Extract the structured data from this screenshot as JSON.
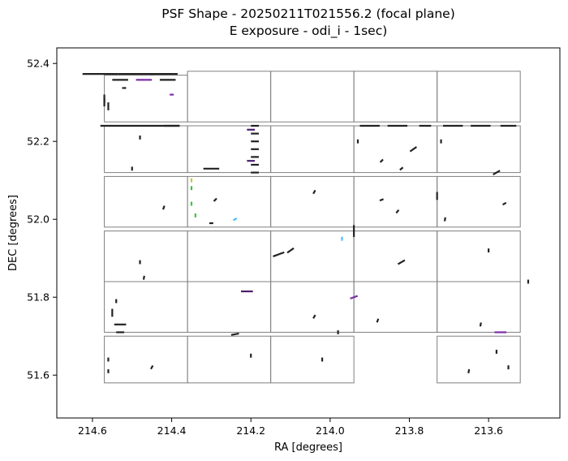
{
  "chart_data": {
    "type": "scatter",
    "title_line_1": "PSF Shape - 20250211T021556.2 (focal plane)",
    "title_line_2": "E exposure - odi_i - 1sec)",
    "xlabel": "RA [degrees]",
    "ylabel": "DEC [degrees]",
    "x_inverted": true,
    "xlim": [
      214.69,
      213.42
    ],
    "ylim": [
      51.49,
      52.44
    ],
    "xticks": [
      214.6,
      214.4,
      214.2,
      214.0,
      213.8,
      213.6
    ],
    "xtick_labels": [
      "214.6",
      "214.4",
      "214.2",
      "214.0",
      "213.8",
      "213.6"
    ],
    "yticks": [
      51.6,
      51.8,
      52.0,
      52.2,
      52.4
    ],
    "ytick_labels": [
      "51.6",
      "51.8",
      "52.0",
      "52.2",
      "52.4"
    ],
    "grid": false,
    "frame_color": "#808080",
    "default_stick_color": "#222222",
    "ota_frames": [
      [
        214.57,
        214.36,
        52.37,
        52.25
      ],
      [
        214.36,
        214.15,
        52.38,
        52.25
      ],
      [
        214.15,
        213.94,
        52.38,
        52.25
      ],
      [
        213.94,
        213.73,
        52.38,
        52.25
      ],
      [
        213.73,
        213.52,
        52.38,
        52.25
      ],
      [
        214.57,
        214.36,
        52.24,
        52.12
      ],
      [
        214.36,
        214.15,
        52.24,
        52.12
      ],
      [
        214.15,
        213.94,
        52.24,
        52.12
      ],
      [
        213.94,
        213.73,
        52.24,
        52.12
      ],
      [
        213.73,
        213.52,
        52.24,
        52.12
      ],
      [
        214.57,
        214.36,
        52.11,
        51.98
      ],
      [
        214.36,
        214.15,
        52.11,
        51.98
      ],
      [
        214.15,
        213.94,
        52.11,
        51.98
      ],
      [
        213.94,
        213.73,
        52.11,
        51.98
      ],
      [
        213.73,
        213.52,
        52.11,
        51.98
      ],
      [
        214.57,
        214.36,
        51.97,
        51.84
      ],
      [
        214.36,
        214.15,
        51.97,
        51.84
      ],
      [
        214.15,
        213.94,
        51.97,
        51.84
      ],
      [
        213.94,
        213.73,
        51.97,
        51.84
      ],
      [
        213.73,
        213.52,
        51.97,
        51.84
      ],
      [
        214.57,
        214.36,
        51.84,
        51.71
      ],
      [
        214.36,
        214.15,
        51.84,
        51.71
      ],
      [
        214.15,
        213.94,
        51.84,
        51.71
      ],
      [
        213.94,
        213.73,
        51.84,
        51.71
      ],
      [
        213.73,
        213.52,
        51.84,
        51.71
      ],
      [
        214.57,
        214.36,
        51.7,
        51.58
      ],
      [
        214.36,
        214.15,
        51.7,
        51.58
      ],
      [
        214.15,
        213.94,
        51.7,
        51.58
      ],
      [
        213.73,
        213.52,
        51.7,
        51.58
      ]
    ],
    "psf_sticks": [
      [
        214.58,
        52.373,
        0.09,
        "#222222"
      ],
      [
        214.49,
        52.373,
        0.09,
        "#222222"
      ],
      [
        214.42,
        52.373,
        0.07,
        "#222222"
      ],
      [
        214.53,
        52.358,
        0.04,
        "#222222"
      ],
      [
        214.47,
        52.358,
        0.04,
        "#7b2fa8"
      ],
      [
        214.41,
        52.358,
        0.04,
        "#222222"
      ],
      [
        214.57,
        52.31,
        0.02,
        "#222222"
      ],
      [
        214.57,
        52.3,
        0.02,
        "#222222"
      ],
      [
        214.56,
        52.29,
        0.02,
        "#222222"
      ],
      [
        214.52,
        52.337,
        0.01,
        "#222222"
      ],
      [
        214.4,
        52.32,
        0.01,
        "#7b2fa8"
      ],
      [
        214.53,
        52.24,
        0.1,
        "#222222"
      ],
      [
        214.43,
        52.24,
        0.1,
        "#222222"
      ],
      [
        214.4,
        52.24,
        0.04,
        "#222222"
      ],
      [
        214.19,
        52.24,
        0.02,
        "#222222"
      ],
      [
        214.19,
        52.22,
        0.02,
        "#222222"
      ],
      [
        214.19,
        52.2,
        0.02,
        "#222222"
      ],
      [
        214.19,
        52.18,
        0.02,
        "#222222"
      ],
      [
        214.19,
        52.16,
        0.02,
        "#222222"
      ],
      [
        214.19,
        52.14,
        0.02,
        "#222222"
      ],
      [
        214.19,
        52.12,
        0.02,
        "#222222"
      ],
      [
        214.2,
        52.23,
        0.02,
        "#4a1d6e"
      ],
      [
        214.2,
        52.15,
        0.02,
        "#4a1d6e"
      ],
      [
        214.3,
        52.13,
        0.04,
        "#222222"
      ],
      [
        214.48,
        52.21,
        0.01,
        "#222222"
      ],
      [
        214.5,
        52.13,
        0.01,
        "#222222"
      ],
      [
        213.9,
        52.24,
        0.05,
        "#222222"
      ],
      [
        213.83,
        52.24,
        0.05,
        "#222222"
      ],
      [
        213.76,
        52.24,
        0.03,
        "#222222"
      ],
      [
        213.69,
        52.24,
        0.05,
        "#222222"
      ],
      [
        213.62,
        52.24,
        0.05,
        "#222222"
      ],
      [
        213.55,
        52.24,
        0.04,
        "#222222"
      ],
      [
        213.93,
        52.2,
        0.01,
        "#222222"
      ],
      [
        213.79,
        52.18,
        0.02,
        "#222222"
      ],
      [
        213.72,
        52.2,
        0.01,
        "#222222"
      ],
      [
        213.87,
        52.15,
        0.01,
        "#222222"
      ],
      [
        213.82,
        52.13,
        0.01,
        "#222222"
      ],
      [
        213.58,
        52.12,
        0.02,
        "#222222"
      ],
      [
        214.35,
        52.08,
        0.01,
        "#39c639"
      ],
      [
        214.35,
        52.04,
        0.01,
        "#39c639"
      ],
      [
        214.34,
        52.01,
        0.01,
        "#39c639"
      ],
      [
        214.35,
        52.1,
        0.01,
        "#c8c830"
      ],
      [
        214.29,
        52.05,
        0.01,
        "#222222"
      ],
      [
        214.24,
        52.0,
        0.01,
        "#4db8ff"
      ],
      [
        214.3,
        51.99,
        0.01,
        "#222222"
      ],
      [
        214.42,
        52.03,
        0.01,
        "#222222"
      ],
      [
        214.04,
        52.07,
        0.01,
        "#222222"
      ],
      [
        213.94,
        51.97,
        0.03,
        "#222222"
      ],
      [
        213.87,
        52.05,
        0.01,
        "#222222"
      ],
      [
        213.83,
        52.02,
        0.01,
        "#222222"
      ],
      [
        213.73,
        52.06,
        0.02,
        "#222222"
      ],
      [
        213.71,
        52.0,
        0.01,
        "#222222"
      ],
      [
        213.56,
        52.04,
        0.01,
        "#222222"
      ],
      [
        214.13,
        51.91,
        0.03,
        "#222222"
      ],
      [
        214.1,
        51.92,
        0.02,
        "#222222"
      ],
      [
        214.47,
        51.85,
        0.01,
        "#222222"
      ],
      [
        214.48,
        51.89,
        0.01,
        "#222222"
      ],
      [
        213.97,
        51.95,
        0.01,
        "#4db8ff"
      ],
      [
        213.82,
        51.89,
        0.02,
        "#222222"
      ],
      [
        213.6,
        51.92,
        0.01,
        "#222222"
      ],
      [
        213.5,
        51.84,
        0.01,
        "#222222"
      ],
      [
        214.21,
        51.815,
        0.03,
        "#4a1d6e"
      ],
      [
        214.54,
        51.79,
        0.01,
        "#222222"
      ],
      [
        214.55,
        51.76,
        0.02,
        "#222222"
      ],
      [
        214.53,
        51.73,
        0.03,
        "#222222"
      ],
      [
        214.53,
        51.71,
        0.02,
        "#222222"
      ],
      [
        214.04,
        51.75,
        0.01,
        "#222222"
      ],
      [
        213.98,
        51.71,
        0.01,
        "#222222"
      ],
      [
        213.94,
        51.8,
        0.02,
        "#7b2fa8"
      ],
      [
        213.88,
        51.74,
        0.01,
        "#222222"
      ],
      [
        213.57,
        51.71,
        0.03,
        "#7b2fa8"
      ],
      [
        213.62,
        51.73,
        0.01,
        "#222222"
      ],
      [
        214.24,
        51.705,
        0.02,
        "#222222"
      ],
      [
        214.56,
        51.64,
        0.01,
        "#222222"
      ],
      [
        214.56,
        51.61,
        0.01,
        "#222222"
      ],
      [
        214.45,
        51.62,
        0.01,
        "#222222"
      ],
      [
        214.2,
        51.65,
        0.01,
        "#222222"
      ],
      [
        214.02,
        51.64,
        0.01,
        "#222222"
      ],
      [
        213.65,
        51.61,
        0.01,
        "#222222"
      ],
      [
        213.58,
        51.66,
        0.01,
        "#222222"
      ],
      [
        213.55,
        51.62,
        0.01,
        "#222222"
      ]
    ],
    "psf_angles": [
      0,
      0,
      0,
      0,
      0,
      0,
      90,
      90,
      90,
      0,
      0,
      0,
      0,
      0,
      0,
      0,
      0,
      0,
      0,
      0,
      0,
      0,
      0,
      0,
      90,
      90,
      0,
      0,
      0,
      0,
      0,
      0,
      90,
      35,
      90,
      45,
      40,
      30,
      90,
      90,
      90,
      90,
      45,
      30,
      0,
      70,
      60,
      90,
      20,
      50,
      90,
      80,
      30,
      20,
      35,
      80,
      90,
      90,
      30,
      90,
      90,
      0,
      90,
      90,
      0,
      0,
      60,
      90,
      20,
      70,
      0,
      80,
      10,
      90,
      90,
      60,
      90,
      90,
      80,
      90,
      90
    ]
  }
}
